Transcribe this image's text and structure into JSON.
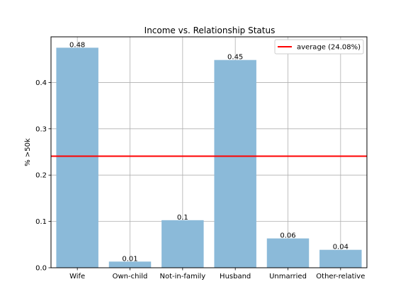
{
  "chart_data": {
    "type": "bar",
    "title": "Income vs. Relationship Status",
    "xlabel": "",
    "ylabel": "% >50k",
    "categories": [
      "Wife",
      "Own-child",
      "Not-in-family",
      "Husband",
      "Unmarried",
      "Other-relative"
    ],
    "values": [
      0.475,
      0.0133,
      0.1027,
      0.4485,
      0.0633,
      0.0387
    ],
    "data_labels": [
      "0.48",
      "0.01",
      "0.1",
      "0.45",
      "0.06",
      "0.04"
    ],
    "ylim": [
      0,
      0.4985
    ],
    "yticks": [
      0.0,
      0.1,
      0.2,
      0.3,
      0.4
    ],
    "ytick_labels": [
      "0.0",
      "0.1",
      "0.2",
      "0.3",
      "0.4"
    ],
    "grid": true,
    "bar_color": "#8bbad9",
    "reference_line": {
      "value": 0.2408,
      "label": "average (24.08%)",
      "color": "#ff0000"
    },
    "legend": {
      "placement": "top-right",
      "entries": [
        "average (24.08%)"
      ]
    }
  }
}
